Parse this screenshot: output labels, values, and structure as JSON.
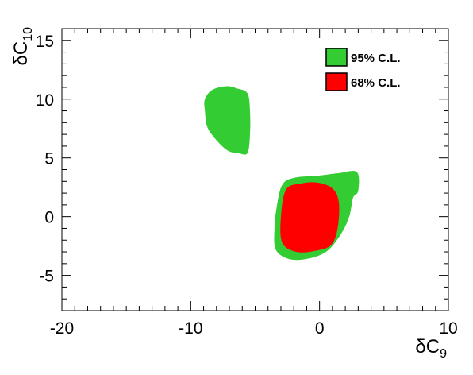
{
  "chart_data": {
    "type": "contour",
    "xlabel": "δC",
    "xlabel_sub": "9",
    "ylabel": "δC",
    "ylabel_sub": "10",
    "xlim": [
      -20,
      10
    ],
    "ylim": [
      -8,
      16
    ],
    "x_ticks": [
      -20,
      -10,
      0,
      10
    ],
    "x_tick_labels": [
      "-20",
      "-10",
      "0",
      "10"
    ],
    "y_ticks": [
      -5,
      0,
      5,
      10,
      15
    ],
    "y_tick_labels": [
      "-5",
      "0",
      "5",
      "10",
      "15"
    ],
    "x_minor_step": 1,
    "y_minor_step": 1,
    "grid": false,
    "legend_position": "top-right",
    "series": [
      {
        "name": "95% C.L.",
        "color": "#33cc33",
        "regions": [
          [
            [
              -8.9,
              10.0
            ],
            [
              -8.3,
              10.8
            ],
            [
              -7.2,
              11.1
            ],
            [
              -6.4,
              10.9
            ],
            [
              -5.6,
              10.5
            ],
            [
              -5.4,
              9.0
            ],
            [
              -5.4,
              7.0
            ],
            [
              -5.6,
              5.4
            ],
            [
              -6.3,
              5.4
            ],
            [
              -7.1,
              5.6
            ],
            [
              -8.0,
              6.5
            ],
            [
              -8.7,
              7.6
            ],
            [
              -8.9,
              9.0
            ]
          ],
          [
            [
              -2.9,
              2.7
            ],
            [
              -2.0,
              3.3
            ],
            [
              0.0,
              3.5
            ],
            [
              1.5,
              3.7
            ],
            [
              2.9,
              3.8
            ],
            [
              3.0,
              2.2
            ],
            [
              2.6,
              1.6
            ],
            [
              2.3,
              0.0
            ],
            [
              1.6,
              -1.6
            ],
            [
              0.5,
              -3.0
            ],
            [
              -1.0,
              -3.6
            ],
            [
              -2.4,
              -3.6
            ],
            [
              -3.4,
              -2.8
            ],
            [
              -3.5,
              -1.0
            ],
            [
              -3.3,
              1.0
            ]
          ]
        ]
      },
      {
        "name": "68% C.L.",
        "color": "#ff0000",
        "regions": [
          [
            [
              -2.6,
              2.3
            ],
            [
              -1.5,
              2.8
            ],
            [
              -0.2,
              2.9
            ],
            [
              1.0,
              2.4
            ],
            [
              1.5,
              1.2
            ],
            [
              1.4,
              -1.0
            ],
            [
              0.9,
              -2.4
            ],
            [
              -0.3,
              -2.9
            ],
            [
              -1.8,
              -3.0
            ],
            [
              -2.9,
              -2.2
            ],
            [
              -3.0,
              0.0
            ]
          ]
        ]
      }
    ]
  }
}
